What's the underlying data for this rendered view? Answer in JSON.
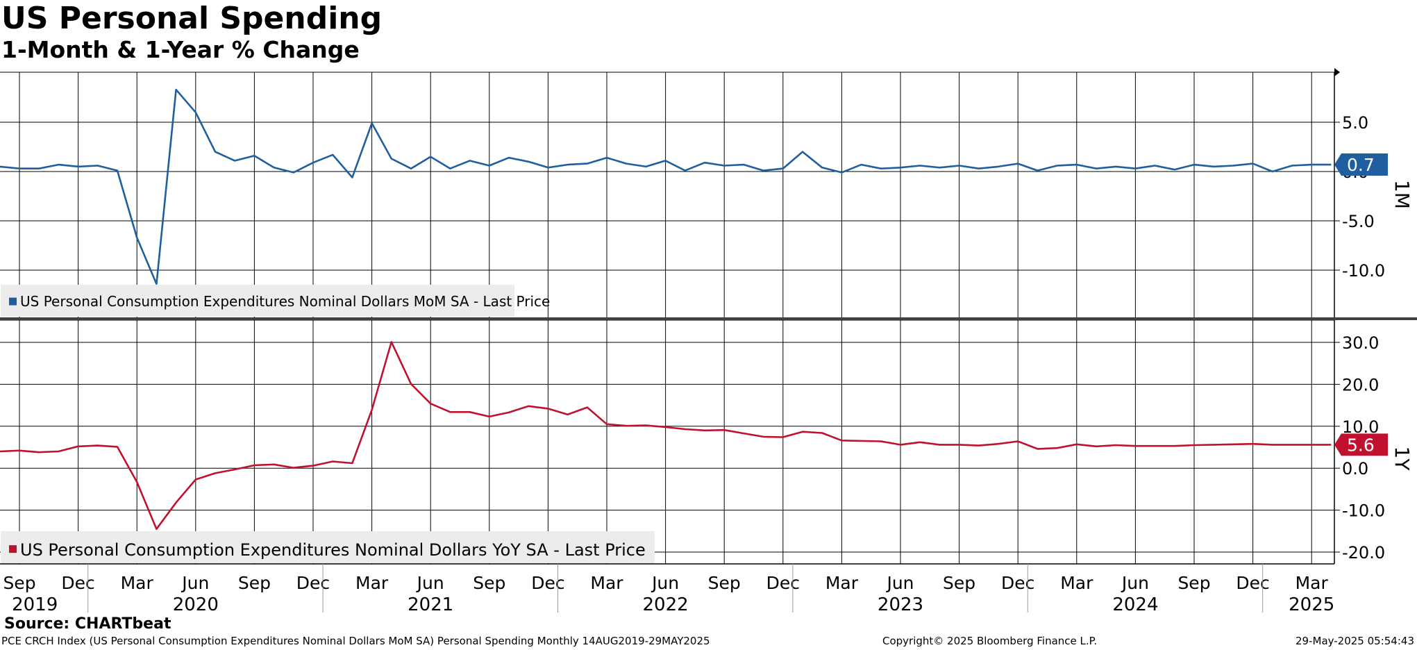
{
  "header": {
    "title": "US Personal Spending",
    "subtitle": "1-Month & 1-Year % Change"
  },
  "source": "Source: CHARTbeat",
  "footer": {
    "index_description": "PCE CRCH Index (US Personal Consumption Expenditures Nominal Dollars MoM SA) Personal Spending  Monthly 14AUG2019-29MAY2025",
    "copyright": "Copyright© 2025 Bloomberg Finance L.P.",
    "timestamp": "29-May-2025 05:54:43"
  },
  "colors": {
    "mom_series": "#1f5fa0",
    "yoy_series": "#c0122e",
    "grid": "#000000",
    "divider": "#404040",
    "legend_bg": "#ececec"
  },
  "chart_data": [
    {
      "type": "line",
      "panel_label": "1M",
      "x": [
        "2019-08",
        "2019-09",
        "2019-10",
        "2019-11",
        "2019-12",
        "2020-01",
        "2020-02",
        "2020-03",
        "2020-04",
        "2020-05",
        "2020-06",
        "2020-07",
        "2020-08",
        "2020-09",
        "2020-10",
        "2020-11",
        "2020-12",
        "2021-01",
        "2021-02",
        "2021-03",
        "2021-04",
        "2021-05",
        "2021-06",
        "2021-07",
        "2021-08",
        "2021-09",
        "2021-10",
        "2021-11",
        "2021-12",
        "2022-01",
        "2022-02",
        "2022-03",
        "2022-04",
        "2022-05",
        "2022-06",
        "2022-07",
        "2022-08",
        "2022-09",
        "2022-10",
        "2022-11",
        "2022-12",
        "2023-01",
        "2023-02",
        "2023-03",
        "2023-04",
        "2023-05",
        "2023-06",
        "2023-07",
        "2023-08",
        "2023-09",
        "2023-10",
        "2023-11",
        "2023-12",
        "2024-01",
        "2024-02",
        "2024-03",
        "2024-04",
        "2024-05",
        "2024-06",
        "2024-07",
        "2024-08",
        "2024-09",
        "2024-10",
        "2024-11",
        "2024-12",
        "2025-01",
        "2025-02",
        "2025-03",
        "2025-04"
      ],
      "series": [
        {
          "name": "US Personal Consumption Expenditures Nominal Dollars MoM SA - Last Price",
          "values": [
            0.5,
            0.3,
            0.3,
            0.7,
            0.5,
            0.6,
            0.1,
            -6.7,
            -11.4,
            8.3,
            6.0,
            2.0,
            1.1,
            1.6,
            0.4,
            -0.1,
            0.9,
            1.7,
            -0.6,
            4.9,
            1.3,
            0.3,
            1.5,
            0.3,
            1.1,
            0.6,
            1.4,
            1.0,
            0.4,
            0.7,
            0.8,
            1.4,
            0.8,
            0.5,
            1.1,
            0.1,
            0.9,
            0.6,
            0.7,
            0.1,
            0.3,
            2.0,
            0.4,
            -0.1,
            0.7,
            0.3,
            0.4,
            0.6,
            0.4,
            0.6,
            0.3,
            0.5,
            0.8,
            0.1,
            0.6,
            0.7,
            0.3,
            0.5,
            0.3,
            0.6,
            0.2,
            0.7,
            0.5,
            0.6,
            0.8,
            0.0,
            0.6,
            0.7,
            0.7
          ]
        }
      ],
      "last_value_label": "0.7",
      "y_ticks": [
        "5.0",
        "0.0",
        "-5.0",
        "-10.0"
      ],
      "y_tick_values": [
        5,
        0,
        -5,
        -10
      ],
      "ylim": [
        -14,
        10
      ],
      "grid": true,
      "legend_placement": "bottom-left"
    },
    {
      "type": "line",
      "panel_label": "1Y",
      "x": [
        "2019-08",
        "2019-09",
        "2019-10",
        "2019-11",
        "2019-12",
        "2020-01",
        "2020-02",
        "2020-03",
        "2020-04",
        "2020-05",
        "2020-06",
        "2020-07",
        "2020-08",
        "2020-09",
        "2020-10",
        "2020-11",
        "2020-12",
        "2021-01",
        "2021-02",
        "2021-03",
        "2021-04",
        "2021-05",
        "2021-06",
        "2021-07",
        "2021-08",
        "2021-09",
        "2021-10",
        "2021-11",
        "2021-12",
        "2022-01",
        "2022-02",
        "2022-03",
        "2022-04",
        "2022-05",
        "2022-06",
        "2022-07",
        "2022-08",
        "2022-09",
        "2022-10",
        "2022-11",
        "2022-12",
        "2023-01",
        "2023-02",
        "2023-03",
        "2023-04",
        "2023-05",
        "2023-06",
        "2023-07",
        "2023-08",
        "2023-09",
        "2023-10",
        "2023-11",
        "2023-12",
        "2024-01",
        "2024-02",
        "2024-03",
        "2024-04",
        "2024-05",
        "2024-06",
        "2024-07",
        "2024-08",
        "2024-09",
        "2024-10",
        "2024-11",
        "2024-12",
        "2025-01",
        "2025-02",
        "2025-03",
        "2025-04"
      ],
      "series": [
        {
          "name": "US Personal Consumption Expenditures Nominal Dollars YoY SA - Last Price",
          "values": [
            4.0,
            4.2,
            3.8,
            4.0,
            5.2,
            5.4,
            5.1,
            -3.3,
            -14.5,
            -8.2,
            -2.7,
            -1.2,
            -0.3,
            0.7,
            0.9,
            0.1,
            0.6,
            1.6,
            1.2,
            13.9,
            30.1,
            20.1,
            15.4,
            13.4,
            13.4,
            12.3,
            13.3,
            14.8,
            14.2,
            12.8,
            14.5,
            10.5,
            10.1,
            10.2,
            9.8,
            9.3,
            9.0,
            9.1,
            8.3,
            7.5,
            7.4,
            8.7,
            8.4,
            6.6,
            6.5,
            6.4,
            5.6,
            6.2,
            5.6,
            5.6,
            5.4,
            5.8,
            6.4,
            4.6,
            4.8,
            5.7,
            5.2,
            5.5,
            5.3,
            5.3,
            5.3,
            5.5,
            5.6,
            5.7,
            5.8,
            5.6,
            5.6,
            5.6,
            5.6
          ]
        }
      ],
      "last_value_label": "5.6",
      "y_ticks": [
        "30.0",
        "20.0",
        "10.0",
        "0.0",
        "-10.0",
        "-20.0"
      ],
      "y_tick_values": [
        30,
        20,
        10,
        0,
        -10,
        -20
      ],
      "ylim": [
        -23,
        33
      ],
      "grid": true,
      "legend_placement": "bottom-left"
    }
  ],
  "x_axis": {
    "month_ticks": [
      {
        "label": "Sep",
        "date": "2019-09"
      },
      {
        "label": "Dec",
        "date": "2019-12"
      },
      {
        "label": "Mar",
        "date": "2020-03"
      },
      {
        "label": "Jun",
        "date": "2020-06"
      },
      {
        "label": "Sep",
        "date": "2020-09"
      },
      {
        "label": "Dec",
        "date": "2020-12"
      },
      {
        "label": "Mar",
        "date": "2021-03"
      },
      {
        "label": "Jun",
        "date": "2021-06"
      },
      {
        "label": "Sep",
        "date": "2021-09"
      },
      {
        "label": "Dec",
        "date": "2021-12"
      },
      {
        "label": "Mar",
        "date": "2022-03"
      },
      {
        "label": "Jun",
        "date": "2022-06"
      },
      {
        "label": "Sep",
        "date": "2022-09"
      },
      {
        "label": "Dec",
        "date": "2022-12"
      },
      {
        "label": "Mar",
        "date": "2023-03"
      },
      {
        "label": "Jun",
        "date": "2023-06"
      },
      {
        "label": "Sep",
        "date": "2023-09"
      },
      {
        "label": "Dec",
        "date": "2023-12"
      },
      {
        "label": "Mar",
        "date": "2024-03"
      },
      {
        "label": "Jun",
        "date": "2024-06"
      },
      {
        "label": "Sep",
        "date": "2024-09"
      },
      {
        "label": "Dec",
        "date": "2024-12"
      },
      {
        "label": "Mar",
        "date": "2025-03"
      }
    ],
    "year_labels": [
      {
        "label": "2019",
        "date": "2019-10"
      },
      {
        "label": "2020",
        "date": "2020-06"
      },
      {
        "label": "2021",
        "date": "2021-06"
      },
      {
        "label": "2022",
        "date": "2022-06"
      },
      {
        "label": "2023",
        "date": "2023-06"
      },
      {
        "label": "2024",
        "date": "2024-06"
      },
      {
        "label": "2025",
        "date": "2025-03"
      }
    ],
    "year_boundaries": [
      "2020-01",
      "2021-01",
      "2022-01",
      "2023-01",
      "2024-01",
      "2025-01"
    ]
  }
}
